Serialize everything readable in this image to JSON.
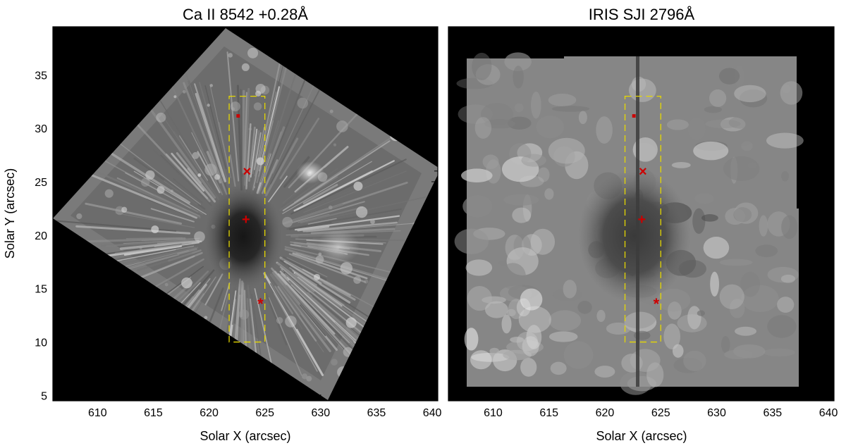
{
  "figure": {
    "panels": [
      {
        "id": "ca",
        "title": "Ca II 8542 +0.28Å",
        "xlabel": "Solar X (arcsec)",
        "ylabel": "Solar Y (arcsec)",
        "xlim": [
          606,
          640.5
        ],
        "ylim": [
          4.5,
          39.5
        ],
        "xticks": [
          610,
          615,
          620,
          625,
          630,
          635,
          640
        ],
        "yticks": [
          5,
          10,
          15,
          20,
          25,
          30,
          35
        ],
        "show_yticklabels": true
      },
      {
        "id": "iris",
        "title": "IRIS SJI 2796Å",
        "xlabel": "Solar X (arcsec)",
        "ylabel": "",
        "xlim": [
          606,
          640.5
        ],
        "ylim": [
          4.5,
          39.5
        ],
        "xticks": [
          610,
          615,
          620,
          625,
          630,
          635,
          640
        ],
        "yticks": [
          5,
          10,
          15,
          20,
          25,
          30,
          35
        ],
        "show_yticklabels": false
      }
    ],
    "region_box": {
      "x": [
        621.8,
        625.0
      ],
      "y": [
        10.0,
        33.0
      ],
      "color": "#e6d800"
    },
    "markers": [
      {
        "name": "square",
        "symbol": "■",
        "x": 622.6,
        "y": 31.2,
        "color": "#cc0000"
      },
      {
        "name": "cross-x",
        "symbol": "×",
        "x": 623.4,
        "y": 26.0,
        "color": "#cc0000"
      },
      {
        "name": "plus",
        "symbol": "+",
        "x": 623.3,
        "y": 21.5,
        "color": "#cc0000"
      },
      {
        "name": "asterisk",
        "symbol": "*",
        "x": 624.6,
        "y": 13.8,
        "color": "#cc0000"
      }
    ]
  }
}
